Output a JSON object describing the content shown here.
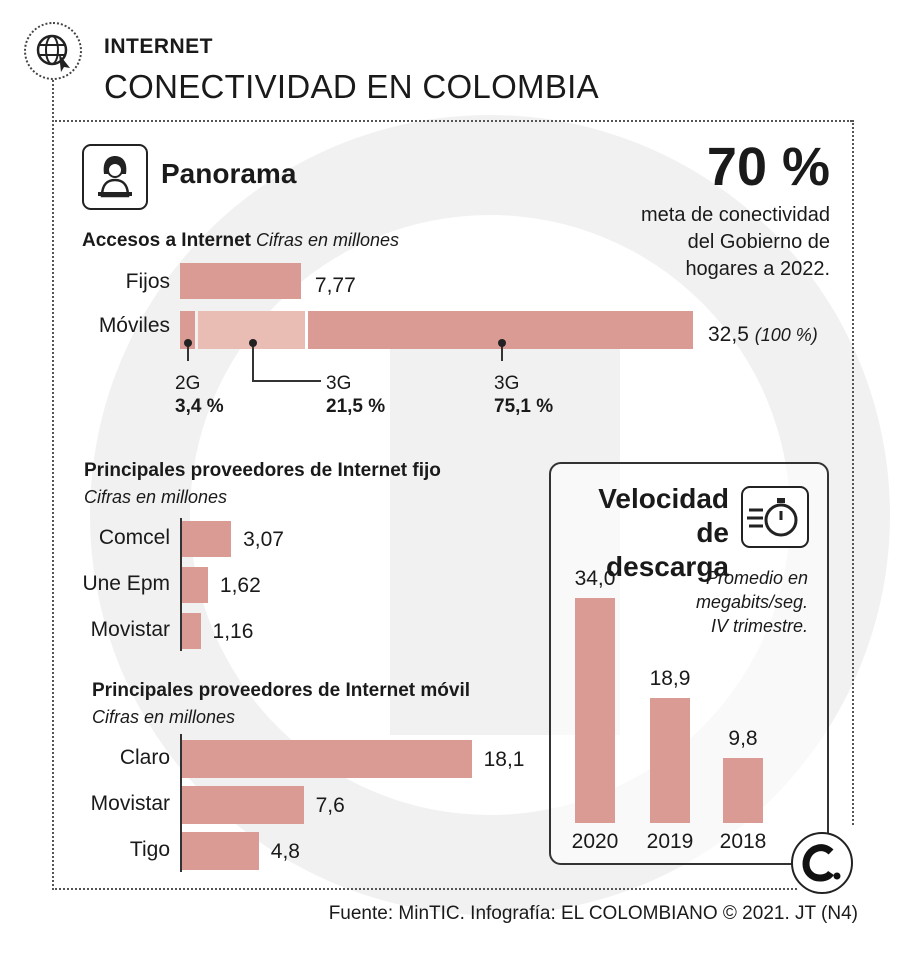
{
  "header": {
    "section": "INTERNET",
    "title": "CONECTIVIDAD EN COLOMBIA"
  },
  "panorama": {
    "heading": "Panorama",
    "goal_value": "70 %",
    "goal_text": [
      "meta de conectividad",
      "del Gobierno de",
      "hogares a 2022."
    ]
  },
  "colors": {
    "bar": "#d99b93",
    "bar_light": "#e9bdb4",
    "watermark": "#efefef"
  },
  "icons": {
    "header": "globe-cursor-icon",
    "panorama": "person-laptop-icon",
    "speed": "stopwatch-icon",
    "logo": "el-colombiano-logo"
  },
  "chart_data": [
    {
      "type": "bar",
      "orientation": "horizontal",
      "title": "Accesos a Internet",
      "subtitle": "Cifras en millones",
      "categories": [
        "Fijos",
        "Móviles"
      ],
      "values": [
        7.77,
        32.5
      ],
      "value_labels": [
        "7,77",
        "32,5"
      ],
      "total_note": "(100 %)",
      "segments": [
        {
          "category": "Móviles",
          "name": "2G",
          "share": 3.4,
          "share_label": "3,4 %"
        },
        {
          "category": "Móviles",
          "name": "3G",
          "share": 21.5,
          "share_label": "21,5 %"
        },
        {
          "category": "Móviles",
          "name": "3G",
          "share": 75.1,
          "share_label": "75,1 %"
        }
      ]
    },
    {
      "type": "bar",
      "orientation": "horizontal",
      "title": "Principales proveedores de Internet fijo",
      "subtitle": "Cifras en millones",
      "categories": [
        "Comcel",
        "Une Epm",
        "Movistar"
      ],
      "values": [
        3.07,
        1.62,
        1.16
      ],
      "value_labels": [
        "3,07",
        "1,62",
        "1,16"
      ]
    },
    {
      "type": "bar",
      "orientation": "horizontal",
      "title": "Principales proveedores de Internet móvil",
      "subtitle": "Cifras en millones",
      "categories": [
        "Claro",
        "Movistar",
        "Tigo"
      ],
      "values": [
        18.1,
        7.6,
        4.8
      ],
      "value_labels": [
        "18,1",
        "7,6",
        "4,8"
      ]
    },
    {
      "type": "bar",
      "orientation": "vertical",
      "title": "Velocidad de descarga",
      "subtitle": "Promedio en megabits/seg. IV trimestre.",
      "categories": [
        "2020",
        "2019",
        "2018"
      ],
      "values": [
        34.0,
        18.9,
        9.8
      ],
      "value_labels": [
        "34,0",
        "18,9",
        "9,8"
      ]
    }
  ],
  "speed": {
    "title_lines": [
      "Velocidad",
      "de descarga"
    ],
    "note_lines": [
      "Promedio en",
      "megabits/seg.",
      "IV trimestre."
    ]
  },
  "source": "Fuente: MinTIC. Infografía: EL COLOMBIANO © 2021. JT (N4)"
}
